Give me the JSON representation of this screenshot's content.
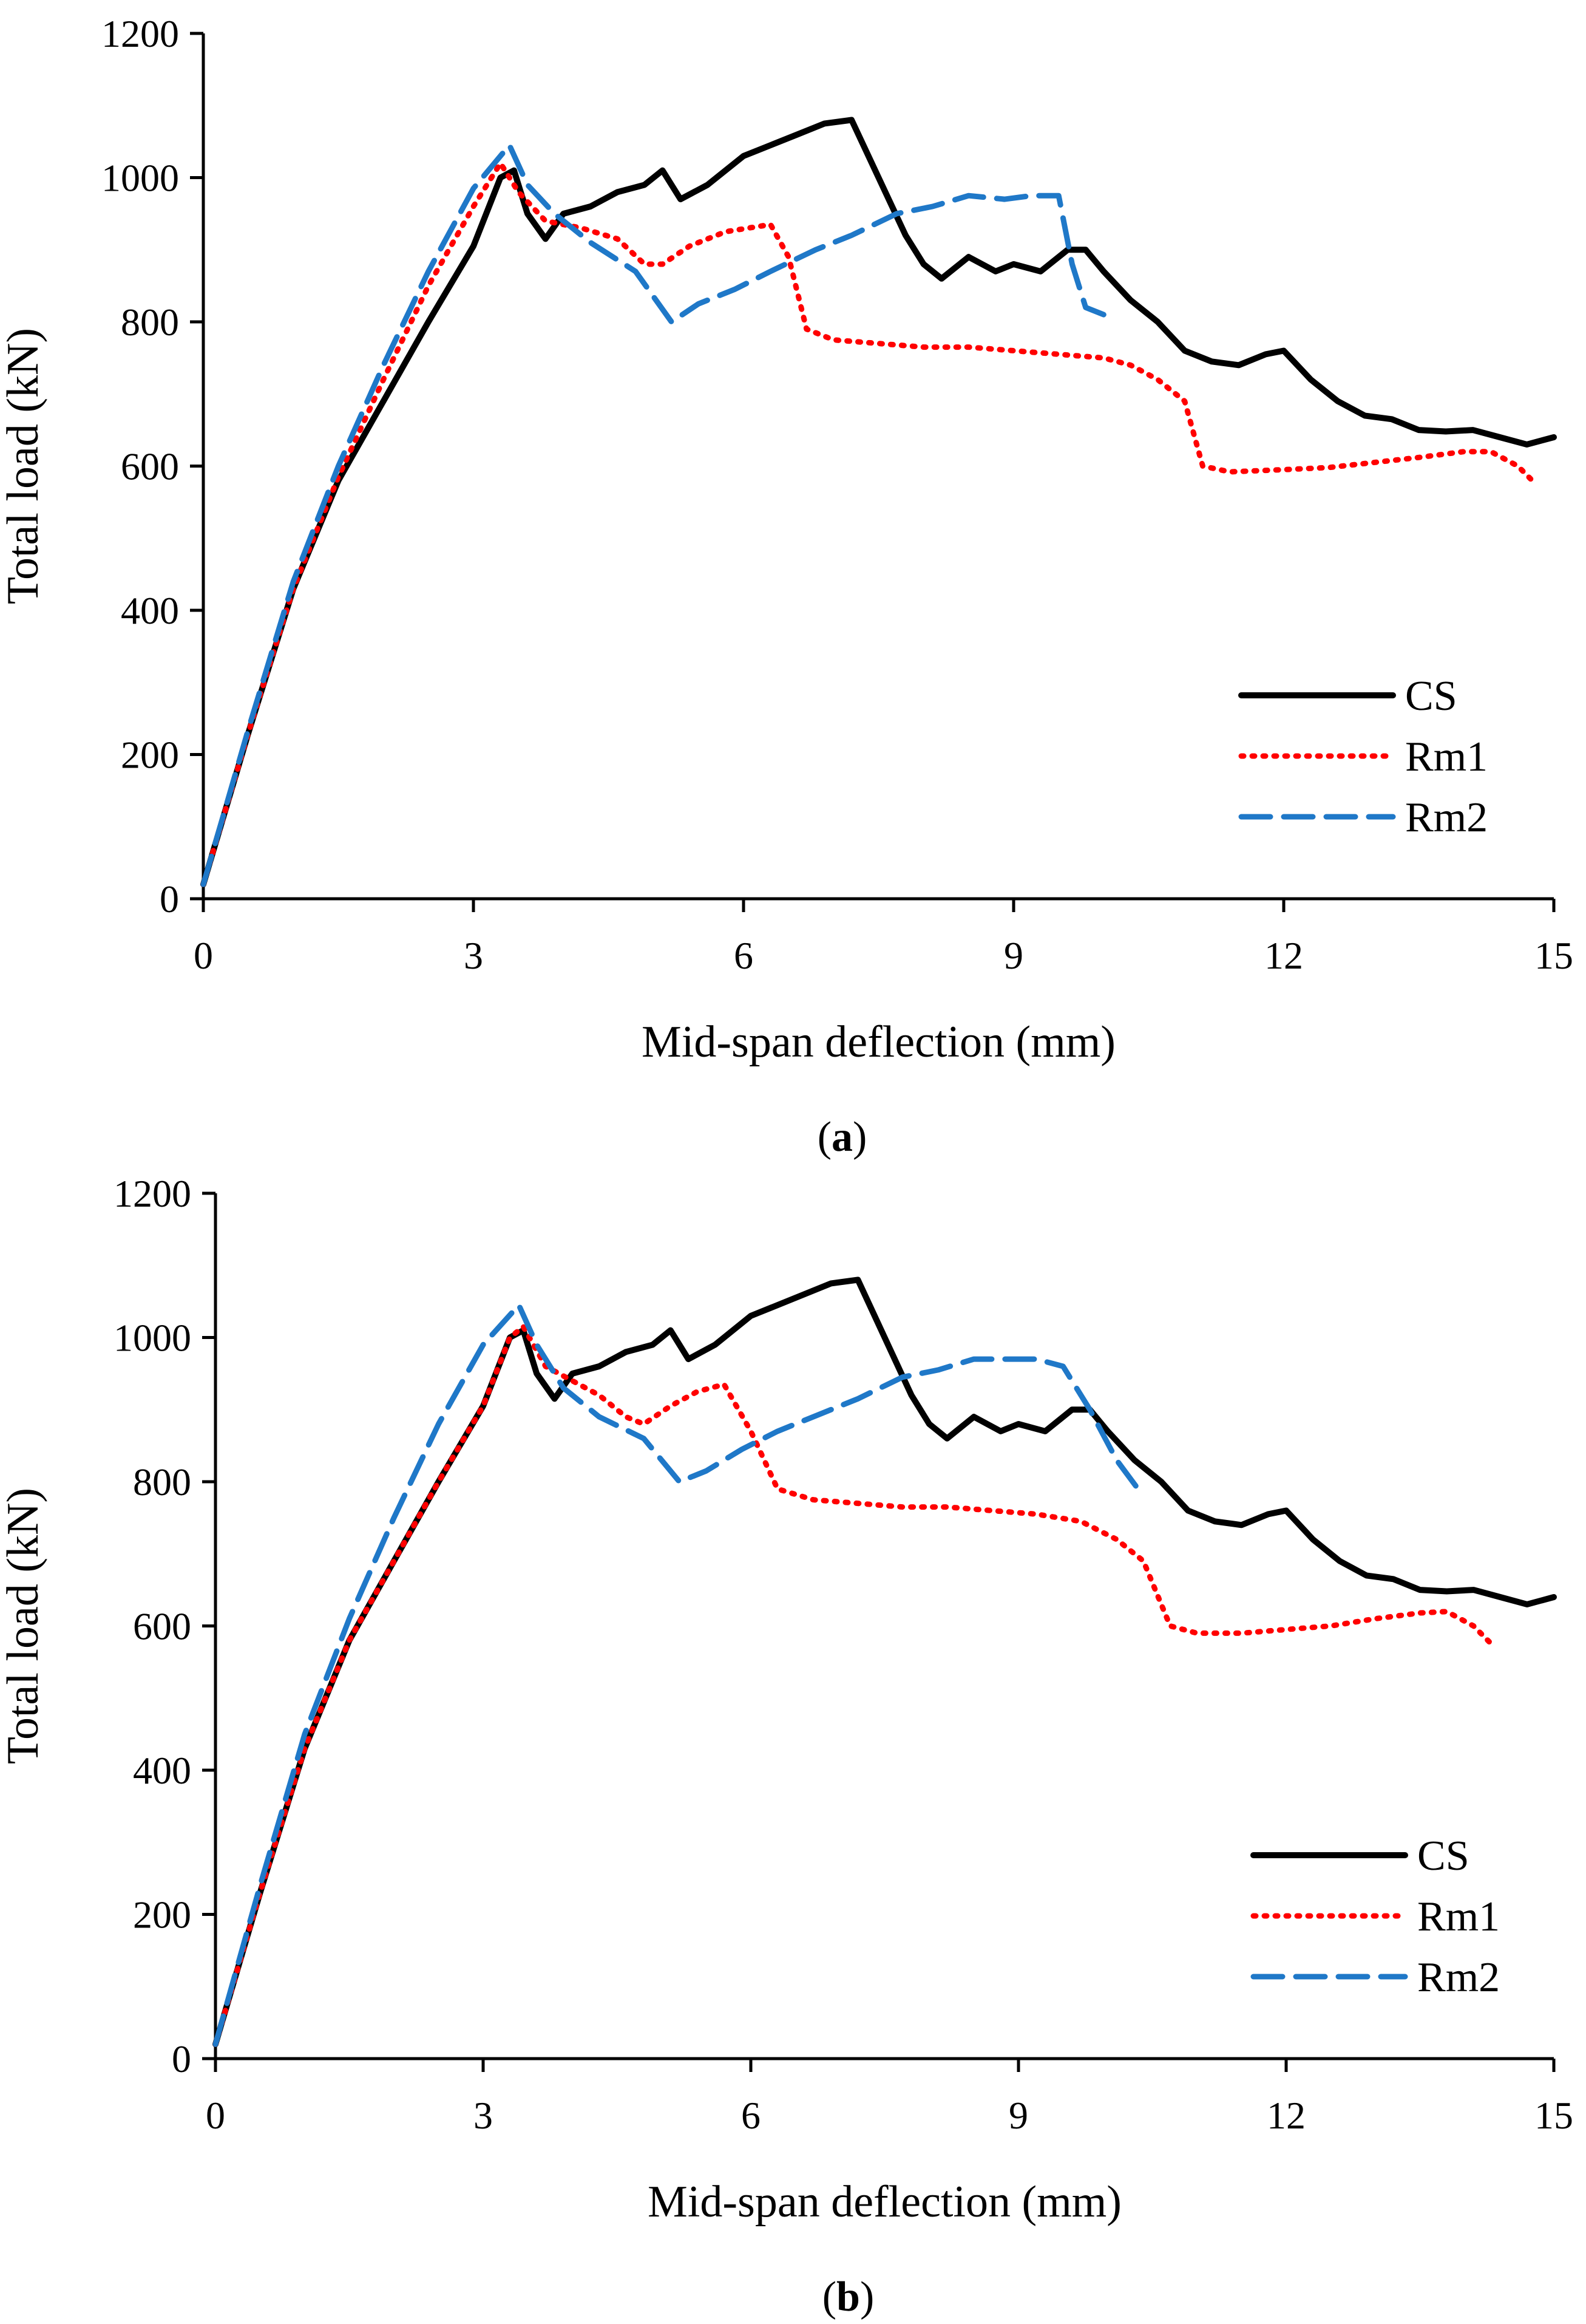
{
  "chart_data": [
    {
      "type": "line",
      "caption_letter": "a",
      "xlabel": "Mid-span deflection (mm)",
      "ylabel": "Total load (kN)",
      "xlim": [
        0,
        15
      ],
      "ylim": [
        0,
        1200
      ],
      "xticks": [
        0,
        3,
        6,
        9,
        12,
        15
      ],
      "yticks": [
        0,
        200,
        400,
        600,
        800,
        1000,
        1200
      ],
      "grid": false,
      "legend_position": "bottom-right",
      "series": [
        {
          "name": "CS",
          "color": "#000000",
          "style": "solid",
          "points": [
            [
              0,
              20
            ],
            [
              0.5,
              230
            ],
            [
              1,
              430
            ],
            [
              1.5,
              580
            ],
            [
              2,
              690
            ],
            [
              2.5,
              800
            ],
            [
              3,
              905
            ],
            [
              3.3,
              1000
            ],
            [
              3.45,
              1010
            ],
            [
              3.6,
              950
            ],
            [
              3.8,
              915
            ],
            [
              4,
              950
            ],
            [
              4.3,
              960
            ],
            [
              4.6,
              980
            ],
            [
              4.9,
              990
            ],
            [
              5.1,
              1010
            ],
            [
              5.3,
              970
            ],
            [
              5.6,
              990
            ],
            [
              6,
              1030
            ],
            [
              6.3,
              1045
            ],
            [
              6.6,
              1060
            ],
            [
              6.9,
              1075
            ],
            [
              7.2,
              1080
            ],
            [
              7.5,
              1000
            ],
            [
              7.8,
              920
            ],
            [
              8,
              880
            ],
            [
              8.2,
              860
            ],
            [
              8.5,
              890
            ],
            [
              8.8,
              870
            ],
            [
              9,
              880
            ],
            [
              9.3,
              870
            ],
            [
              9.6,
              900
            ],
            [
              9.8,
              900
            ],
            [
              10,
              870
            ],
            [
              10.3,
              830
            ],
            [
              10.6,
              800
            ],
            [
              10.9,
              760
            ],
            [
              11.2,
              745
            ],
            [
              11.5,
              740
            ],
            [
              11.8,
              755
            ],
            [
              12,
              760
            ],
            [
              12.3,
              720
            ],
            [
              12.6,
              690
            ],
            [
              12.9,
              670
            ],
            [
              13.2,
              665
            ],
            [
              13.5,
              650
            ],
            [
              13.8,
              648
            ],
            [
              14.1,
              650
            ],
            [
              14.4,
              640
            ],
            [
              14.7,
              630
            ],
            [
              15,
              640
            ]
          ]
        },
        {
          "name": "Rm1",
          "color": "#ff0000",
          "style": "dotted",
          "points": [
            [
              0,
              20
            ],
            [
              0.5,
              230
            ],
            [
              1,
              430
            ],
            [
              1.5,
              585
            ],
            [
              2,
              720
            ],
            [
              2.5,
              850
            ],
            [
              3,
              960
            ],
            [
              3.3,
              1020
            ],
            [
              3.5,
              980
            ],
            [
              3.8,
              940
            ],
            [
              4.2,
              930
            ],
            [
              4.6,
              915
            ],
            [
              4.9,
              880
            ],
            [
              5.1,
              880
            ],
            [
              5.4,
              905
            ],
            [
              5.8,
              925
            ],
            [
              6.3,
              935
            ],
            [
              6.5,
              890
            ],
            [
              6.7,
              790
            ],
            [
              7,
              775
            ],
            [
              7.5,
              770
            ],
            [
              8,
              765
            ],
            [
              8.5,
              765
            ],
            [
              9,
              760
            ],
            [
              9.5,
              755
            ],
            [
              10,
              750
            ],
            [
              10.3,
              740
            ],
            [
              10.6,
              720
            ],
            [
              10.9,
              690
            ],
            [
              11.1,
              600
            ],
            [
              11.4,
              592
            ],
            [
              12,
              595
            ],
            [
              12.5,
              598
            ],
            [
              13,
              605
            ],
            [
              13.5,
              612
            ],
            [
              14,
              620
            ],
            [
              14.3,
              620
            ],
            [
              14.6,
              600
            ],
            [
              14.8,
              575
            ]
          ]
        },
        {
          "name": "Rm2",
          "color": "#1f78c8",
          "style": "dashed",
          "points": [
            [
              0,
              20
            ],
            [
              0.5,
              235
            ],
            [
              1,
              440
            ],
            [
              1.5,
              600
            ],
            [
              2,
              740
            ],
            [
              2.5,
              870
            ],
            [
              3,
              985
            ],
            [
              3.4,
              1045
            ],
            [
              3.6,
              990
            ],
            [
              3.9,
              950
            ],
            [
              4.3,
              910
            ],
            [
              4.8,
              870
            ],
            [
              5.2,
              800
            ],
            [
              5.5,
              825
            ],
            [
              5.9,
              845
            ],
            [
              6.3,
              870
            ],
            [
              6.8,
              900
            ],
            [
              7.2,
              920
            ],
            [
              7.7,
              950
            ],
            [
              8.1,
              960
            ],
            [
              8.5,
              975
            ],
            [
              8.9,
              970
            ],
            [
              9.2,
              975
            ],
            [
              9.5,
              975
            ],
            [
              9.65,
              880
            ],
            [
              9.8,
              820
            ],
            [
              10,
              810
            ]
          ]
        }
      ]
    },
    {
      "type": "line",
      "caption_letter": "b",
      "xlabel": "Mid-span deflection (mm)",
      "ylabel": "Total load (kN)",
      "xlim": [
        0,
        15
      ],
      "ylim": [
        0,
        1200
      ],
      "xticks": [
        0,
        3,
        6,
        9,
        12,
        15
      ],
      "yticks": [
        0,
        200,
        400,
        600,
        800,
        1000,
        1200
      ],
      "grid": false,
      "legend_position": "bottom-right",
      "series": [
        {
          "name": "CS",
          "color": "#000000",
          "style": "solid",
          "points": [
            [
              0,
              20
            ],
            [
              0.5,
              230
            ],
            [
              1,
              430
            ],
            [
              1.5,
              580
            ],
            [
              2,
              690
            ],
            [
              2.5,
              800
            ],
            [
              3,
              905
            ],
            [
              3.3,
              1000
            ],
            [
              3.45,
              1010
            ],
            [
              3.6,
              950
            ],
            [
              3.8,
              915
            ],
            [
              4,
              950
            ],
            [
              4.3,
              960
            ],
            [
              4.6,
              980
            ],
            [
              4.9,
              990
            ],
            [
              5.1,
              1010
            ],
            [
              5.3,
              970
            ],
            [
              5.6,
              990
            ],
            [
              6,
              1030
            ],
            [
              6.3,
              1045
            ],
            [
              6.6,
              1060
            ],
            [
              6.9,
              1075
            ],
            [
              7.2,
              1080
            ],
            [
              7.5,
              1000
            ],
            [
              7.8,
              920
            ],
            [
              8,
              880
            ],
            [
              8.2,
              860
            ],
            [
              8.5,
              890
            ],
            [
              8.8,
              870
            ],
            [
              9,
              880
            ],
            [
              9.3,
              870
            ],
            [
              9.6,
              900
            ],
            [
              9.8,
              900
            ],
            [
              10,
              870
            ],
            [
              10.3,
              830
            ],
            [
              10.6,
              800
            ],
            [
              10.9,
              760
            ],
            [
              11.2,
              745
            ],
            [
              11.5,
              740
            ],
            [
              11.8,
              755
            ],
            [
              12,
              760
            ],
            [
              12.3,
              720
            ],
            [
              12.6,
              690
            ],
            [
              12.9,
              670
            ],
            [
              13.2,
              665
            ],
            [
              13.5,
              650
            ],
            [
              13.8,
              648
            ],
            [
              14.1,
              650
            ],
            [
              14.4,
              640
            ],
            [
              14.7,
              630
            ],
            [
              15,
              640
            ]
          ]
        },
        {
          "name": "Rm1",
          "color": "#ff0000",
          "style": "dotted",
          "points": [
            [
              0,
              20
            ],
            [
              0.5,
              230
            ],
            [
              1,
              430
            ],
            [
              1.5,
              580
            ],
            [
              2,
              690
            ],
            [
              2.5,
              800
            ],
            [
              3,
              905
            ],
            [
              3.3,
              1000
            ],
            [
              3.45,
              1015
            ],
            [
              3.7,
              960
            ],
            [
              4,
              940
            ],
            [
              4.3,
              920
            ],
            [
              4.6,
              890
            ],
            [
              4.8,
              880
            ],
            [
              5.1,
              905
            ],
            [
              5.4,
              925
            ],
            [
              5.7,
              935
            ],
            [
              6,
              870
            ],
            [
              6.3,
              790
            ],
            [
              6.7,
              775
            ],
            [
              7.2,
              770
            ],
            [
              7.7,
              765
            ],
            [
              8.2,
              765
            ],
            [
              8.7,
              760
            ],
            [
              9.2,
              755
            ],
            [
              9.7,
              745
            ],
            [
              10.1,
              720
            ],
            [
              10.4,
              690
            ],
            [
              10.7,
              600
            ],
            [
              11,
              590
            ],
            [
              11.5,
              590
            ],
            [
              12,
              595
            ],
            [
              12.5,
              600
            ],
            [
              13,
              610
            ],
            [
              13.5,
              618
            ],
            [
              13.8,
              620
            ],
            [
              14.1,
              600
            ],
            [
              14.3,
              575
            ]
          ]
        },
        {
          "name": "Rm2",
          "color": "#1f78c8",
          "style": "dashed",
          "points": [
            [
              0,
              20
            ],
            [
              0.5,
              240
            ],
            [
              1,
              450
            ],
            [
              1.5,
              610
            ],
            [
              2,
              750
            ],
            [
              2.5,
              880
            ],
            [
              3,
              990
            ],
            [
              3.4,
              1045
            ],
            [
              3.6,
              990
            ],
            [
              3.9,
              930
            ],
            [
              4.3,
              890
            ],
            [
              4.8,
              860
            ],
            [
              5.2,
              800
            ],
            [
              5.5,
              815
            ],
            [
              5.9,
              845
            ],
            [
              6.3,
              870
            ],
            [
              6.8,
              895
            ],
            [
              7.2,
              915
            ],
            [
              7.7,
              945
            ],
            [
              8.1,
              955
            ],
            [
              8.5,
              970
            ],
            [
              8.9,
              970
            ],
            [
              9.2,
              970
            ],
            [
              9.5,
              960
            ],
            [
              9.8,
              900
            ],
            [
              10.1,
              830
            ],
            [
              10.4,
              780
            ]
          ]
        }
      ]
    }
  ]
}
